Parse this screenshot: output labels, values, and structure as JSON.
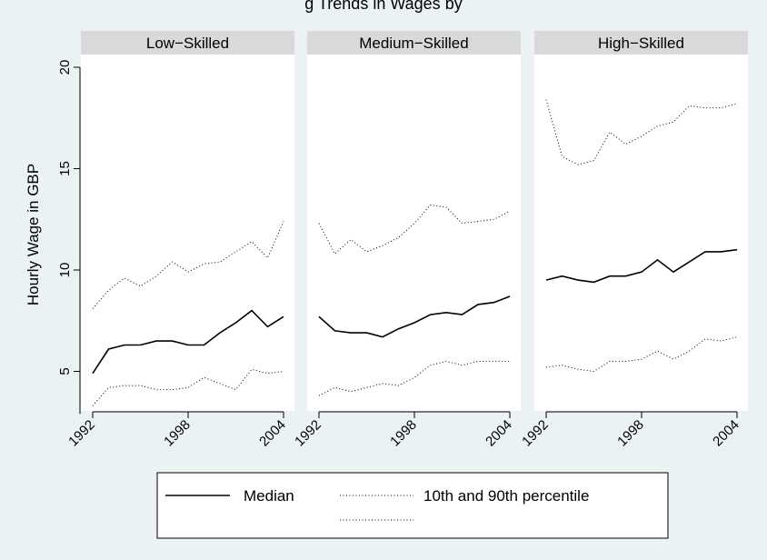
{
  "header_fragment": "g Trends in Wages by",
  "chart_data": [
    {
      "type": "line",
      "title": "Low−Skilled",
      "ylabel": "Hourly Wage in GBP",
      "ylim": [
        2.9,
        20.3
      ],
      "yticks": [
        5,
        10,
        15,
        20
      ],
      "xlim": [
        1991.5,
        2004.5
      ],
      "xticks": [
        "1992",
        "1998",
        "2004"
      ],
      "grid": false,
      "x": [
        1992,
        1993,
        1994,
        1995,
        1996,
        1997,
        1998,
        1999,
        2000,
        2001,
        2002,
        2003,
        2004
      ],
      "series": [
        {
          "name": "Median",
          "style": "solid",
          "values": [
            4.9,
            6.1,
            6.3,
            6.3,
            6.5,
            6.5,
            6.3,
            6.3,
            6.9,
            7.4,
            8.0,
            7.2,
            7.7
          ]
        },
        {
          "name": "10th percentile",
          "style": "dotted",
          "values": [
            3.3,
            4.2,
            4.3,
            4.3,
            4.1,
            4.1,
            4.2,
            4.7,
            4.4,
            4.1,
            5.1,
            4.9,
            5.0
          ]
        },
        {
          "name": "90th percentile",
          "style": "dotted",
          "values": [
            8.1,
            9.0,
            9.6,
            9.2,
            9.7,
            10.4,
            9.9,
            10.3,
            10.4,
            10.9,
            11.4,
            10.6,
            12.4
          ]
        }
      ]
    },
    {
      "type": "line",
      "title": "Medium−Skilled",
      "ylim": [
        2.9,
        20.3
      ],
      "xlim": [
        1991.5,
        2004.5
      ],
      "xticks": [
        "1992",
        "1998",
        "2004"
      ],
      "grid": false,
      "x": [
        1992,
        1993,
        1994,
        1995,
        1996,
        1997,
        1998,
        1999,
        2000,
        2001,
        2002,
        2003,
        2004
      ],
      "series": [
        {
          "name": "Median",
          "style": "solid",
          "values": [
            7.7,
            7.0,
            6.9,
            6.9,
            6.7,
            7.1,
            7.4,
            7.8,
            7.9,
            7.8,
            8.3,
            8.4,
            8.7
          ]
        },
        {
          "name": "10th percentile",
          "style": "dotted",
          "values": [
            3.8,
            4.2,
            4.0,
            4.2,
            4.4,
            4.3,
            4.7,
            5.3,
            5.5,
            5.3,
            5.5,
            5.5,
            5.5
          ]
        },
        {
          "name": "90th percentile",
          "style": "dotted",
          "values": [
            12.3,
            10.8,
            11.5,
            10.9,
            11.2,
            11.6,
            12.3,
            13.2,
            13.1,
            12.3,
            12.4,
            12.5,
            12.9
          ]
        }
      ]
    },
    {
      "type": "line",
      "title": "High−Skilled",
      "ylim": [
        2.9,
        20.3
      ],
      "xlim": [
        1991.5,
        2004.5
      ],
      "xticks": [
        "1992",
        "1998",
        "2004"
      ],
      "grid": false,
      "x": [
        1992,
        1993,
        1994,
        1995,
        1996,
        1997,
        1998,
        1999,
        2000,
        2001,
        2002,
        2003,
        2004
      ],
      "series": [
        {
          "name": "Median",
          "style": "solid",
          "values": [
            9.5,
            9.7,
            9.5,
            9.4,
            9.7,
            9.7,
            9.9,
            10.5,
            9.9,
            10.4,
            10.9,
            10.9,
            11.0
          ]
        },
        {
          "name": "10th percentile",
          "style": "dotted",
          "values": [
            5.2,
            5.3,
            5.1,
            5.0,
            5.5,
            5.5,
            5.6,
            6.0,
            5.6,
            6.0,
            6.6,
            6.5,
            6.7
          ]
        },
        {
          "name": "90th percentile",
          "style": "dotted",
          "values": [
            18.4,
            15.6,
            15.2,
            15.4,
            16.8,
            16.2,
            16.6,
            17.1,
            17.3,
            18.1,
            18.0,
            18.0,
            18.2
          ]
        }
      ]
    }
  ],
  "legend": {
    "placement": "bottom",
    "items": [
      {
        "label": "Median",
        "style": "solid"
      },
      {
        "label": "10th and 90th percentile",
        "style": "dotted"
      }
    ]
  },
  "colors": {
    "background": "#eaf2f3",
    "panel": "#ffffff",
    "strip": "#d9d9d9",
    "line": "#000000"
  }
}
